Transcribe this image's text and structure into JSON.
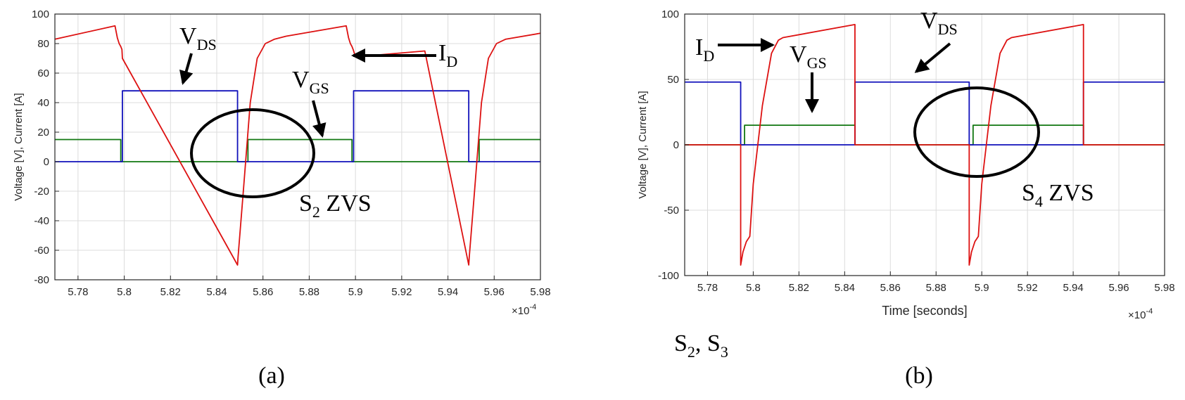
{
  "captions": {
    "a": "(a)",
    "b": "(b)",
    "bottom_main1": "S",
    "bottom_sub1": "2",
    "bottom_main2": ", S",
    "bottom_sub2": "3"
  },
  "colors": {
    "id": "#dd1111",
    "vds": "#1111bb",
    "vgs": "#117711"
  },
  "chart_data": [
    {
      "type": "line",
      "panel": "a",
      "xlabel": "",
      "ylabel": "Voltage [V], Current [A]",
      "xlim": [
        5.77,
        5.98
      ],
      "ylim": [
        -80,
        100
      ],
      "xticks": [
        5.78,
        5.8,
        5.82,
        5.84,
        5.86,
        5.88,
        5.9,
        5.92,
        5.94,
        5.96,
        5.98
      ],
      "xtick_labels": [
        "5.78",
        "5.8",
        "5.82",
        "5.84",
        "5.86",
        "5.88",
        "5.9",
        "5.92",
        "5.94",
        "5.96",
        "5.98"
      ],
      "yticks": [
        -80,
        -60,
        -40,
        -20,
        0,
        20,
        40,
        60,
        80,
        100
      ],
      "ytick_labels": [
        "-80",
        "-60",
        "-40",
        "-20",
        "0",
        "20",
        "40",
        "60",
        "80",
        "100"
      ],
      "x_multiplier": {
        "base": "×10",
        "exp": "-4"
      },
      "grid": true,
      "series": [
        {
          "key": "id",
          "color": "#dd1111",
          "x": [
            5.77,
            5.796,
            5.7965,
            5.797,
            5.7978,
            5.7985,
            5.799,
            5.7992,
            5.849,
            5.8492,
            5.8515,
            5.8545,
            5.8575,
            5.861,
            5.865,
            5.87,
            5.896,
            5.8965,
            5.897,
            5.8978,
            5.8985,
            5.899,
            5.9,
            5.93,
            5.949,
            5.9492,
            5.9515,
            5.9545,
            5.9575,
            5.961,
            5.965,
            5.98
          ],
          "y": [
            83,
            92,
            88,
            84,
            80,
            78,
            76,
            70,
            -70,
            -65,
            -20,
            40,
            70,
            80,
            83,
            85,
            92,
            88,
            84,
            80,
            78,
            76,
            71,
            75,
            -70,
            -65,
            -20,
            40,
            70,
            80,
            83,
            87
          ]
        },
        {
          "key": "vds",
          "color": "#1111bb",
          "x": [
            5.77,
            5.7992,
            5.7992,
            5.849,
            5.849,
            5.8992,
            5.8992,
            5.949,
            5.949,
            5.98
          ],
          "y": [
            0,
            0,
            48,
            48,
            0,
            0,
            48,
            48,
            0,
            0
          ]
        },
        {
          "key": "vgs",
          "color": "#117711",
          "x": [
            5.77,
            5.7985,
            5.7985,
            5.8535,
            5.8535,
            5.8985,
            5.8985,
            5.9535,
            5.9535,
            5.98
          ],
          "y": [
            15,
            15,
            0,
            0,
            15,
            15,
            0,
            0,
            15,
            15
          ]
        }
      ],
      "annotations": [
        {
          "main": "V",
          "sub": "DS"
        },
        {
          "main": "V",
          "sub": "GS"
        },
        {
          "main": "I",
          "sub": "D"
        },
        {
          "main": "S",
          "sub": "2",
          "tail": " ZVS"
        }
      ]
    },
    {
      "type": "line",
      "panel": "b",
      "xlabel": "Time [seconds]",
      "ylabel": "Voltage [V], Current [A]",
      "xlim": [
        5.77,
        5.98
      ],
      "ylim": [
        -100,
        100
      ],
      "xticks": [
        5.78,
        5.8,
        5.82,
        5.84,
        5.86,
        5.88,
        5.9,
        5.92,
        5.94,
        5.96,
        5.98
      ],
      "xtick_labels": [
        "5.78",
        "5.8",
        "5.82",
        "5.84",
        "5.86",
        "5.88",
        "5.9",
        "5.92",
        "5.94",
        "5.96",
        "5.98"
      ],
      "yticks": [
        -100,
        -50,
        0,
        50,
        100
      ],
      "ytick_labels": [
        "-100",
        "-50",
        "0",
        "50",
        "100"
      ],
      "x_multiplier": {
        "base": "×10",
        "exp": "-4"
      },
      "grid": true,
      "series": [
        {
          "key": "id",
          "color": "#dd1111",
          "x": [
            5.77,
            5.7945,
            5.7945,
            5.7955,
            5.797,
            5.7985,
            5.8,
            5.804,
            5.808,
            5.811,
            5.813,
            5.8445,
            5.8445,
            5.8945,
            5.8945,
            5.8955,
            5.897,
            5.8985,
            5.9,
            5.904,
            5.908,
            5.911,
            5.913,
            5.9445,
            5.9445,
            5.98
          ],
          "y": [
            0,
            0,
            -92,
            -82,
            -74,
            -70,
            -30,
            30,
            70,
            80,
            82,
            92,
            0,
            0,
            -92,
            -82,
            -74,
            -70,
            -30,
            30,
            70,
            80,
            82,
            92,
            0,
            0
          ]
        },
        {
          "key": "vds",
          "color": "#1111bb",
          "x": [
            5.77,
            5.7945,
            5.7945,
            5.8445,
            5.8445,
            5.8945,
            5.8945,
            5.9445,
            5.9445,
            5.98
          ],
          "y": [
            48,
            48,
            0,
            0,
            48,
            48,
            0,
            0,
            48,
            48
          ]
        },
        {
          "key": "vgs",
          "color": "#117711",
          "x": [
            5.77,
            5.7962,
            5.7962,
            5.8445,
            5.8445,
            5.8962,
            5.8962,
            5.9445,
            5.9445,
            5.98
          ],
          "y": [
            0,
            0,
            15,
            15,
            0,
            0,
            15,
            15,
            0,
            0
          ]
        }
      ],
      "annotations": [
        {
          "main": "I",
          "sub": "D"
        },
        {
          "main": "V",
          "sub": "GS"
        },
        {
          "main": "V",
          "sub": "DS"
        },
        {
          "main": "S",
          "sub": "4",
          "tail": " ZVS"
        }
      ]
    }
  ]
}
